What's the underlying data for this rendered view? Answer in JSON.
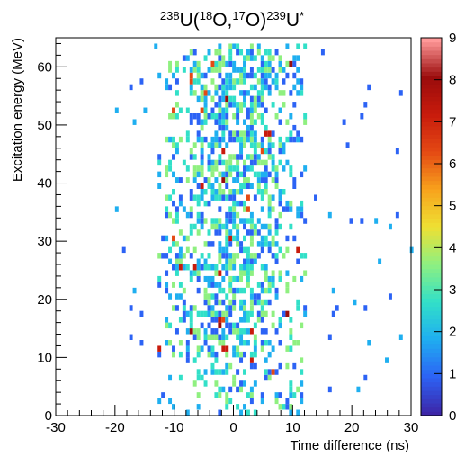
{
  "chart_data": {
    "type": "heatmap",
    "title": {
      "parts": [
        {
          "t": "238",
          "sup": true
        },
        {
          "t": "U(",
          "sup": false
        },
        {
          "t": "18",
          "sup": true
        },
        {
          "t": "O,",
          "sup": false
        },
        {
          "t": "17",
          "sup": true
        },
        {
          "t": "O)",
          "sup": false
        },
        {
          "t": "239",
          "sup": true
        },
        {
          "t": "U",
          "sup": false
        },
        {
          "t": "*",
          "sup": true
        }
      ]
    },
    "xlabel": "Time difference (ns)",
    "ylabel": "Excitation energy (MeV)",
    "xlim": [
      -30,
      30
    ],
    "ylim": [
      0,
      65
    ],
    "x_ticks": [
      -30,
      -20,
      -10,
      0,
      10,
      20,
      30
    ],
    "y_ticks": [
      0,
      10,
      20,
      30,
      40,
      50,
      60
    ],
    "x_minor_step": 2,
    "y_minor_step": 2,
    "bin_width_ns": 0.6,
    "bin_height_mev": 1.0,
    "x_center_ns": 0,
    "x_sigma_ns": 6.5,
    "signal_x_range_ns": [
      -13,
      12
    ],
    "signal_y_range_mev": [
      0,
      64
    ],
    "z_range": [
      0,
      9
    ],
    "z_ticks": [
      0,
      1,
      2,
      3,
      4,
      5,
      6,
      7,
      8,
      9
    ],
    "palette": [
      "#3d26a8",
      "#2c63f5",
      "#1faff0",
      "#32e0c8",
      "#8ff080",
      "#eee033",
      "#f8a21c",
      "#e44a14",
      "#c81b0c",
      "#9a0c0c",
      "#ff9999"
    ],
    "grid": false,
    "colorbar": "right"
  }
}
